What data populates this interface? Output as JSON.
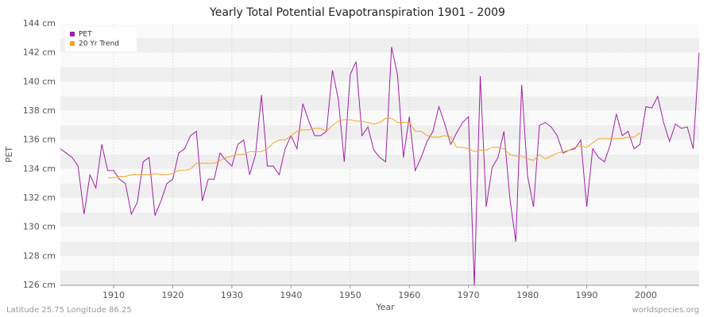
{
  "chart_data": {
    "type": "line",
    "title": "Yearly Total Potential Evapotranspiration 1901 - 2009",
    "xlabel": "Year",
    "ylabel": "PET",
    "footer_left": "Latitude 25.75 Longitude 86.25",
    "footer_right": "worldspecies.org",
    "legend": "upper left",
    "grid": true,
    "x": [
      1901,
      1902,
      1903,
      1904,
      1905,
      1906,
      1907,
      1908,
      1909,
      1910,
      1911,
      1912,
      1913,
      1914,
      1915,
      1916,
      1917,
      1918,
      1919,
      1920,
      1921,
      1922,
      1923,
      1924,
      1925,
      1926,
      1927,
      1928,
      1929,
      1930,
      1931,
      1932,
      1933,
      1934,
      1935,
      1936,
      1937,
      1938,
      1939,
      1940,
      1941,
      1942,
      1943,
      1944,
      1945,
      1946,
      1947,
      1948,
      1949,
      1950,
      1951,
      1952,
      1953,
      1954,
      1955,
      1956,
      1957,
      1958,
      1959,
      1960,
      1961,
      1962,
      1963,
      1964,
      1965,
      1966,
      1967,
      1968,
      1969,
      1970,
      1971,
      1972,
      1973,
      1974,
      1975,
      1976,
      1977,
      1978,
      1979,
      1980,
      1981,
      1982,
      1983,
      1984,
      1985,
      1986,
      1987,
      1988,
      1989,
      1990,
      1991,
      1992,
      1993,
      1994,
      1995,
      1996,
      1997,
      1998,
      1999,
      2000,
      2001,
      2002,
      2003,
      2004,
      2005,
      2006,
      2007,
      2008,
      2009
    ],
    "series": [
      {
        "name": "PET",
        "color": "#a020a8",
        "values": [
          135.4,
          135.1,
          134.8,
          134.2,
          130.9,
          133.6,
          132.7,
          135.7,
          133.9,
          133.9,
          133.3,
          133.0,
          130.9,
          131.7,
          134.5,
          134.8,
          130.8,
          131.8,
          133.0,
          133.3,
          135.1,
          135.4,
          136.3,
          136.6,
          131.8,
          133.3,
          133.3,
          135.1,
          134.6,
          134.2,
          135.7,
          136.0,
          133.6,
          135.0,
          139.1,
          134.2,
          134.2,
          133.6,
          135.4,
          136.3,
          135.4,
          138.5,
          137.3,
          136.3,
          136.3,
          136.6,
          140.8,
          138.8,
          134.5,
          140.5,
          141.4,
          136.3,
          136.9,
          135.3,
          134.8,
          134.5,
          142.4,
          140.5,
          134.8,
          137.6,
          133.9,
          134.8,
          135.9,
          136.6,
          138.3,
          137.1,
          135.7,
          136.5,
          137.2,
          137.6,
          126.0,
          140.4,
          131.4,
          134.1,
          134.8,
          136.6,
          132.0,
          129.0,
          139.8,
          133.5,
          131.4,
          137.0,
          137.2,
          136.9,
          136.3,
          135.1,
          135.3,
          135.4,
          136.0,
          131.4,
          135.4,
          134.8,
          134.5,
          135.7,
          137.8,
          136.3,
          136.6,
          135.4,
          135.7,
          138.3,
          138.2,
          139.0,
          137.2,
          135.9,
          137.1,
          136.8,
          136.9,
          135.4,
          142.0
        ]
      },
      {
        "name": "20 Yr Trend",
        "color": "#f5a623",
        "values": [
          null,
          null,
          null,
          null,
          null,
          null,
          null,
          null,
          133.4,
          133.4,
          133.5,
          133.5,
          133.6,
          133.6,
          133.6,
          133.6,
          133.7,
          133.6,
          133.6,
          133.7,
          133.9,
          133.9,
          134.0,
          134.4,
          134.4,
          134.4,
          134.4,
          134.6,
          134.8,
          134.9,
          135.0,
          135.0,
          135.2,
          135.2,
          135.2,
          135.4,
          135.8,
          136.0,
          136.0,
          136.3,
          136.6,
          136.7,
          136.7,
          136.8,
          136.8,
          136.6,
          137.0,
          137.3,
          137.4,
          137.4,
          137.3,
          137.3,
          137.2,
          137.1,
          137.2,
          137.5,
          137.5,
          137.2,
          137.2,
          137.2,
          136.6,
          136.6,
          136.3,
          136.2,
          136.2,
          136.3,
          136.2,
          135.5,
          135.5,
          135.4,
          135.2,
          135.3,
          135.3,
          135.5,
          135.5,
          135.4,
          135.0,
          134.9,
          134.9,
          134.7,
          134.6,
          135.0,
          134.7,
          134.9,
          135.1,
          135.2,
          135.3,
          135.5,
          135.6,
          135.5,
          135.8,
          136.1,
          136.1,
          136.1,
          136.1,
          136.1,
          136.2,
          136.2,
          136.5,
          null,
          null,
          null,
          null,
          null,
          null,
          null,
          null,
          null,
          null
        ]
      }
    ],
    "xlim": [
      1901,
      2009
    ],
    "xticks": [
      1910,
      1920,
      1930,
      1940,
      1950,
      1960,
      1970,
      1980,
      1990,
      2000
    ],
    "ylim": [
      126,
      144
    ],
    "yticks": [
      {
        "value": 126,
        "label": "126 cm"
      },
      {
        "value": 128,
        "label": "128 cm"
      },
      {
        "value": 130,
        "label": "130 cm"
      },
      {
        "value": 132,
        "label": "132 cm"
      },
      {
        "value": 134,
        "label": "134 cm"
      },
      {
        "value": 136,
        "label": "136 cm"
      },
      {
        "value": 138,
        "label": "138 cm"
      },
      {
        "value": 140,
        "label": "140 cm"
      },
      {
        "value": 142,
        "label": "142 cm"
      },
      {
        "value": 144,
        "label": "144 cm"
      }
    ]
  }
}
